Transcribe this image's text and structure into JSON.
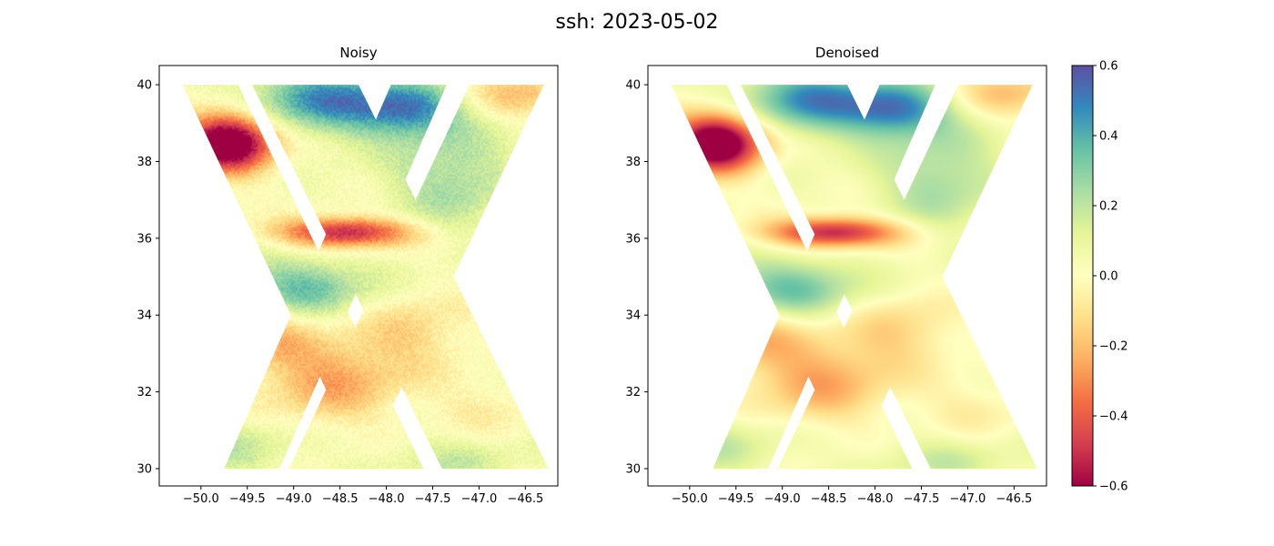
{
  "chart_data": {
    "type": "heatmap",
    "title": "ssh: 2023-05-02",
    "panels": [
      {
        "title": "Noisy",
        "xlim": [
          -50.45,
          -46.15
        ],
        "ylim": [
          29.55,
          40.5
        ],
        "xticks": [
          -50.0,
          -49.5,
          -49.0,
          -48.5,
          -48.0,
          -47.5,
          -47.0,
          -46.5
        ],
        "xtick_labels": [
          "−50.0",
          "−49.5",
          "−49.0",
          "−48.5",
          "−48.0",
          "−47.5",
          "−47.0",
          "−46.5"
        ],
        "yticks": [
          30,
          32,
          34,
          36,
          38,
          40
        ],
        "ytick_labels": [
          "30",
          "32",
          "34",
          "36",
          "38",
          "40"
        ],
        "noisy": true
      },
      {
        "title": "Denoised",
        "xlim": [
          -50.45,
          -46.15
        ],
        "ylim": [
          29.55,
          40.5
        ],
        "xticks": [
          -50.0,
          -49.5,
          -49.0,
          -48.5,
          -48.0,
          -47.5,
          -47.0,
          -46.5
        ],
        "xtick_labels": [
          "−50.0",
          "−49.5",
          "−49.0",
          "−48.5",
          "−48.0",
          "−47.5",
          "−47.0",
          "−46.5"
        ],
        "yticks": [
          30,
          32,
          34,
          36,
          38,
          40
        ],
        "ytick_labels": [
          "30",
          "32",
          "34",
          "36",
          "38",
          "40"
        ],
        "noisy": false
      }
    ],
    "swaths": [
      {
        "top": [
          -50.2,
          -49.6
        ],
        "bottom": [
          -48.25,
          -47.6
        ]
      },
      {
        "top": [
          -49.45,
          -48.3
        ],
        "bottom": [
          -47.4,
          -46.25
        ]
      },
      {
        "top": [
          -47.95,
          -47.35
        ],
        "bottom": [
          -49.75,
          -49.15
        ]
      },
      {
        "top": [
          -47.1,
          -46.3
        ],
        "bottom": [
          -49.05,
          -48.25
        ]
      }
    ],
    "swath_ylim": [
      30.0,
      40.0
    ],
    "ssh_features": [
      {
        "lon": -49.7,
        "lat": 38.5,
        "amp": -0.85,
        "sx": 0.35,
        "sy": 0.55
      },
      {
        "lon": -48.45,
        "lat": 36.15,
        "amp": -0.6,
        "sx": 0.5,
        "sy": 0.28
      },
      {
        "lon": -48.7,
        "lat": 39.6,
        "amp": 0.42,
        "sx": 0.55,
        "sy": 0.6
      },
      {
        "lon": -47.75,
        "lat": 39.35,
        "amp": 0.42,
        "sx": 0.4,
        "sy": 0.5
      },
      {
        "lon": -48.9,
        "lat": 34.7,
        "amp": 0.32,
        "sx": 0.5,
        "sy": 0.55
      },
      {
        "lon": -46.55,
        "lat": 39.8,
        "amp": -0.22,
        "sx": 0.45,
        "sy": 0.45
      },
      {
        "lon": -48.6,
        "lat": 32.3,
        "amp": -0.28,
        "sx": 0.55,
        "sy": 0.8
      },
      {
        "lon": -49.3,
        "lat": 33.5,
        "amp": -0.2,
        "sx": 0.4,
        "sy": 0.6
      },
      {
        "lon": -47.7,
        "lat": 33.6,
        "amp": -0.17,
        "sx": 0.45,
        "sy": 0.7
      },
      {
        "lon": -49.7,
        "lat": 30.6,
        "amp": 0.14,
        "sx": 0.5,
        "sy": 0.5
      },
      {
        "lon": -47.3,
        "lat": 37.6,
        "amp": 0.22,
        "sx": 0.45,
        "sy": 0.9
      },
      {
        "lon": -46.9,
        "lat": 31.6,
        "amp": -0.1,
        "sx": 0.45,
        "sy": 0.5
      },
      {
        "lon": -47.3,
        "lat": 30.2,
        "amp": 0.12,
        "sx": 0.5,
        "sy": 0.4
      }
    ],
    "colorbar": {
      "cmap": "Spectral",
      "vmin": -0.6,
      "vmax": 0.6,
      "ticks": [
        -0.6,
        -0.4,
        -0.2,
        0.0,
        0.2,
        0.4,
        0.6
      ],
      "tick_labels": [
        "−0.6",
        "−0.4",
        "−0.2",
        "0.0",
        "0.2",
        "0.4",
        "0.6"
      ]
    },
    "grid": false
  }
}
